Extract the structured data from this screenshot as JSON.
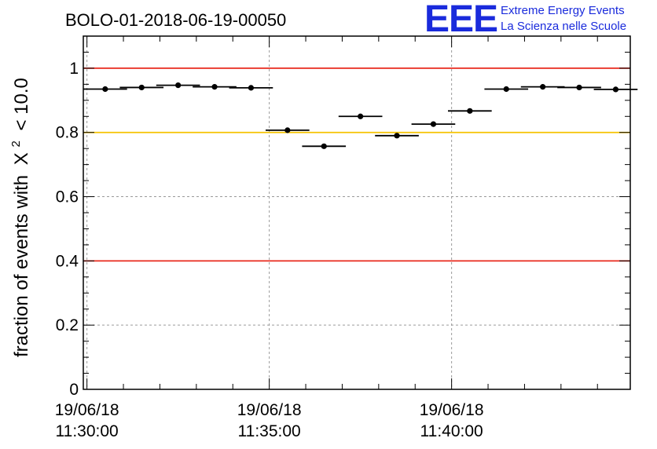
{
  "chart_data": {
    "type": "scatter",
    "title": "BOLO-01-2018-06-19-00050",
    "ylabel_prefix": "fraction of events with",
    "ylabel_chi": "X",
    "ylabel_sup": "2",
    "ylabel_suffix": "< 10.0",
    "ylim": [
      0,
      1.1
    ],
    "xlim_minutes": [
      -0.1,
      14.9
    ],
    "x_unit": "minutes after 19/06/18 11:30:00",
    "y_ticks": [
      {
        "value": 0,
        "label": "0"
      },
      {
        "value": 0.2,
        "label": "0.2"
      },
      {
        "value": 0.4,
        "label": "0.4"
      },
      {
        "value": 0.6,
        "label": "0.6"
      },
      {
        "value": 0.8,
        "label": "0.8"
      },
      {
        "value": 1.0,
        "label": "1"
      }
    ],
    "x_ticks": [
      {
        "minute": 0,
        "date": "19/06/18",
        "time": "11:30:00"
      },
      {
        "minute": 5,
        "date": "19/06/18",
        "time": "11:35:00"
      },
      {
        "minute": 10,
        "date": "19/06/18",
        "time": "11:40:00"
      }
    ],
    "grid": true,
    "reference_lines": [
      {
        "y": 1.0,
        "color": "#e8291c"
      },
      {
        "y": 0.8,
        "color": "#f5c300"
      },
      {
        "y": 0.4,
        "color": "#e8291c"
      }
    ],
    "points": [
      {
        "x": 0.5,
        "y": 0.935
      },
      {
        "x": 1.5,
        "y": 0.94
      },
      {
        "x": 2.5,
        "y": 0.947
      },
      {
        "x": 3.5,
        "y": 0.942
      },
      {
        "x": 4.5,
        "y": 0.939
      },
      {
        "x": 5.5,
        "y": 0.807
      },
      {
        "x": 6.5,
        "y": 0.757
      },
      {
        "x": 7.5,
        "y": 0.85
      },
      {
        "x": 8.5,
        "y": 0.79
      },
      {
        "x": 9.5,
        "y": 0.826
      },
      {
        "x": 10.5,
        "y": 0.867
      },
      {
        "x": 11.5,
        "y": 0.935
      },
      {
        "x": 12.5,
        "y": 0.942
      },
      {
        "x": 13.5,
        "y": 0.94
      },
      {
        "x": 14.5,
        "y": 0.934
      }
    ],
    "bin_halfwidth_minutes": 0.6
  },
  "logo": {
    "big": "EEE",
    "line1": "Extreme Energy Events",
    "line2": "La Scienza nelle Scuole",
    "color": "#1a2bdc"
  }
}
